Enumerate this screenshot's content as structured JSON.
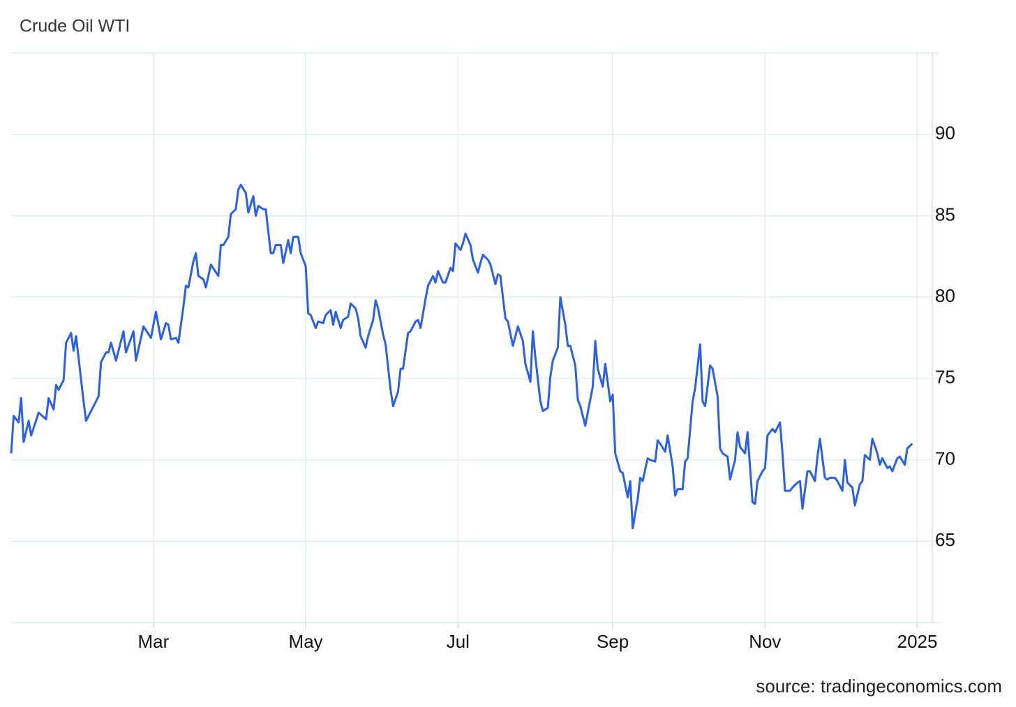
{
  "chart_data": {
    "type": "line",
    "title": "Crude Oil WTI",
    "source": "source: tradingeconomics.com",
    "x": [
      3,
      4,
      6,
      7,
      8,
      10,
      11,
      14,
      17,
      18,
      20,
      21,
      22,
      24,
      25,
      27,
      28,
      29,
      32,
      33,
      38,
      39,
      41,
      42,
      43,
      45,
      48,
      49,
      52,
      53,
      56,
      59,
      61,
      63,
      65,
      66,
      67,
      69,
      70,
      72,
      73,
      74,
      76,
      77,
      78,
      80,
      81,
      83,
      86,
      87,
      88,
      90,
      91,
      93,
      94,
      95,
      97,
      98,
      100,
      101,
      102,
      104,
      105,
      107,
      108,
      109,
      111,
      112,
      114,
      115,
      116,
      118,
      119,
      121,
      122,
      123,
      125,
      126,
      128,
      129,
      131,
      132,
      133,
      135,
      136,
      138,
      139,
      141,
      142,
      143,
      145,
      146,
      148,
      149,
      150,
      152,
      153,
      155,
      156,
      158,
      159,
      160,
      162,
      163,
      165,
      166,
      167,
      169,
      170,
      172,
      173,
      174,
      176,
      177,
      179,
      180,
      181,
      183,
      184,
      185,
      187,
      188,
      190,
      191,
      192,
      194,
      195,
      197,
      198,
      199,
      201,
      202,
      204,
      205,
      206,
      208,
      209,
      211,
      212,
      213,
      215,
      216,
      218,
      219,
      220,
      222,
      223,
      225,
      226,
      227,
      229,
      230,
      231,
      233,
      234,
      236,
      237,
      238,
      240,
      241,
      243,
      244,
      245,
      247,
      248,
      250,
      251,
      252,
      254,
      255,
      256,
      258,
      259,
      261,
      262,
      263,
      265,
      266,
      268,
      269,
      270,
      272,
      273,
      274,
      276,
      277,
      279,
      280,
      281,
      283,
      284,
      286,
      287,
      288,
      290,
      291,
      293,
      294,
      295,
      297,
      298,
      300,
      301,
      302,
      304,
      305,
      306,
      308,
      309,
      311,
      312,
      313,
      315,
      316,
      318,
      319,
      320,
      322,
      323,
      325,
      326,
      327,
      329,
      330,
      331,
      333,
      334,
      336,
      337,
      338,
      340,
      341,
      343,
      344,
      345,
      347,
      348,
      350,
      351,
      352,
      354,
      355,
      356,
      358,
      359,
      361,
      362,
      364
    ],
    "values": [
      70.4,
      72.7,
      72.3,
      73.8,
      71.1,
      72.4,
      71.5,
      72.9,
      72.5,
      73.8,
      73.1,
      74.6,
      74.3,
      74.9,
      77.2,
      77.8,
      76.7,
      77.6,
      73.6,
      72.4,
      73.9,
      76.0,
      76.6,
      76.6,
      77.2,
      76.1,
      77.9,
      76.6,
      77.9,
      76.1,
      78.2,
      77.5,
      79.1,
      77.4,
      78.4,
      78.3,
      77.4,
      77.5,
      77.2,
      79.4,
      80.7,
      80.6,
      82.2,
      82.7,
      81.3,
      81.1,
      80.6,
      82.0,
      81.3,
      83.2,
      83.2,
      83.7,
      85.1,
      85.4,
      86.6,
      86.9,
      86.4,
      85.2,
      86.2,
      85.0,
      85.6,
      85.4,
      85.4,
      82.7,
      82.7,
      83.2,
      83.2,
      82.1,
      83.5,
      82.7,
      83.7,
      83.7,
      82.7,
      81.9,
      79.0,
      78.9,
      78.1,
      78.5,
      78.4,
      78.9,
      79.2,
      78.3,
      79.1,
      78.1,
      78.6,
      78.8,
      79.6,
      79.3,
      78.7,
      77.6,
      76.9,
      77.6,
      78.6,
      79.8,
      79.3,
      77.7,
      77.1,
      74.3,
      73.3,
      74.2,
      75.6,
      75.6,
      77.8,
      77.9,
      78.5,
      78.6,
      78.1,
      79.9,
      80.7,
      81.3,
      80.9,
      81.6,
      80.9,
      80.9,
      81.8,
      81.6,
      83.3,
      82.9,
      83.3,
      83.9,
      83.2,
      82.3,
      81.5,
      82.1,
      82.6,
      82.3,
      82.0,
      80.8,
      81.4,
      81.3,
      78.7,
      78.5,
      77.0,
      77.6,
      78.2,
      77.3,
      75.9,
      74.8,
      77.9,
      76.3,
      73.6,
      73.0,
      73.2,
      75.1,
      76.1,
      76.9,
      80.0,
      78.3,
      77.0,
      77.0,
      75.8,
      73.7,
      73.3,
      72.1,
      72.9,
      74.5,
      77.3,
      75.6,
      74.5,
      75.9,
      73.6,
      74.0,
      70.4,
      69.3,
      69.2,
      67.7,
      68.7,
      65.8,
      67.6,
      68.9,
      68.7,
      70.1,
      70.0,
      69.9,
      71.2,
      71.0,
      70.5,
      71.5,
      69.6,
      67.8,
      68.2,
      68.2,
      69.9,
      70.1,
      73.6,
      74.4,
      77.1,
      73.6,
      73.3,
      75.8,
      75.6,
      73.9,
      70.7,
      70.4,
      70.2,
      68.8,
      70.0,
      71.7,
      70.8,
      70.4,
      71.7,
      67.4,
      67.3,
      68.7,
      69.3,
      69.5,
      71.5,
      71.9,
      71.7,
      72.3,
      70.4,
      68.1,
      68.1,
      68.3,
      68.6,
      68.7,
      67.0,
      69.3,
      69.3,
      68.7,
      70.2,
      71.3,
      68.9,
      68.8,
      68.9,
      68.9,
      68.7,
      68.1,
      70.0,
      68.6,
      68.3,
      67.2,
      68.5,
      68.7,
      70.3,
      70.0,
      71.3,
      70.4,
      69.7,
      70.1,
      69.5,
      69.6,
      69.3,
      70.1,
      70.2,
      69.7,
      70.7,
      71.0
    ],
    "color": "#2a5fe8",
    "xlim": [
      3,
      372
    ],
    "xticks": [
      {
        "value": 60,
        "label": "Mar"
      },
      {
        "value": 121,
        "label": "May"
      },
      {
        "value": 182,
        "label": "Jul"
      },
      {
        "value": 244,
        "label": "Sep"
      },
      {
        "value": 305,
        "label": "Nov"
      },
      {
        "value": 366,
        "label": "2025"
      }
    ],
    "ylim": [
      60,
      95
    ],
    "yticks": [
      65,
      70,
      75,
      80,
      85,
      90
    ],
    "grid": true
  }
}
